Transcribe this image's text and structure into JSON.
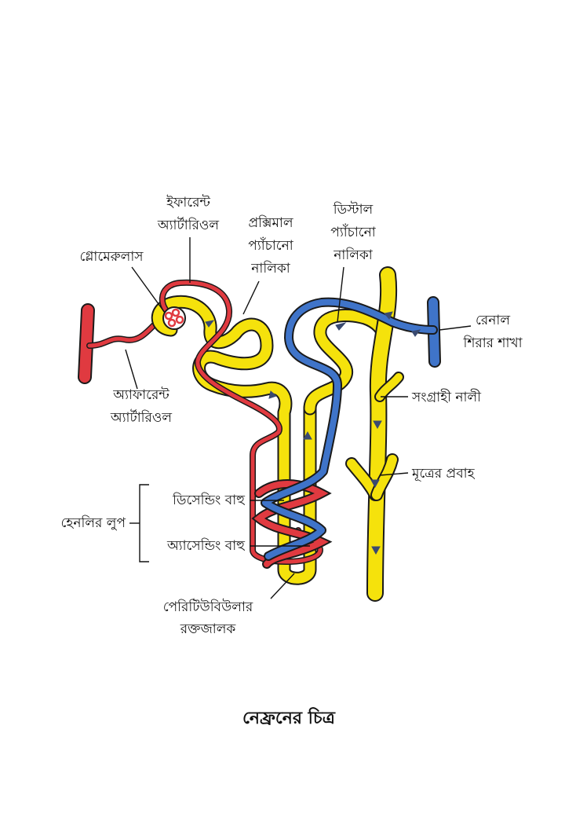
{
  "colors": {
    "artery": "#e03a40",
    "vein": "#3f74c9",
    "tubule": "#f5e20c",
    "outline": "#1a1a1a",
    "arrow": "#3a4a70"
  },
  "labels": {
    "efferent_1": "ইফারেন্ট",
    "efferent_2": "অ্যার্টারিওল",
    "proximal_1": "প্রক্সিমাল",
    "proximal_2": "প্যাঁচানো",
    "proximal_3": "নালিকা",
    "distal_1": "ডিস্টাল",
    "distal_2": "প্যাঁচানো",
    "distal_3": "নালিকা",
    "glomerulus": "গ্লোমেরুলাস",
    "renal_vein_1": "রেনাল",
    "renal_vein_2": "শিরার শাখা",
    "afferent_1": "অ্যাফারেন্ট",
    "afferent_2": "অ্যার্টারিওল",
    "collecting_duct": "সংগ্রাহী নালী",
    "urine_flow": "মূত্রের প্রবাহ",
    "descending_limb": "ডিসেন্ডিং বাহু",
    "ascending_limb": "অ্যাসেন্ডিং বাহু",
    "loop_of_henle": "হেনলির লুপ",
    "peritubular_1": "পেরিটিউবিউলার",
    "peritubular_2": "রক্তজালক"
  },
  "title": "নেফ্রনের চিত্র"
}
